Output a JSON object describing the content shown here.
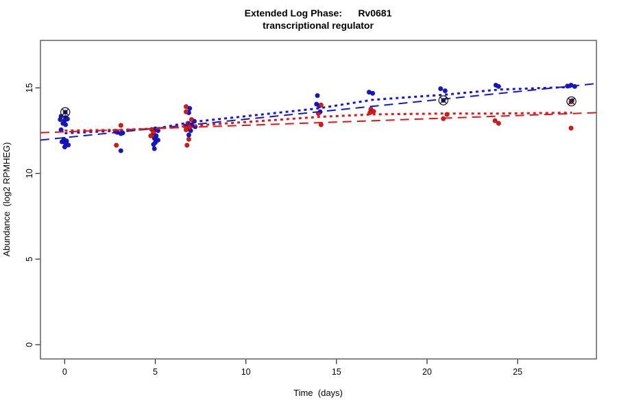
{
  "title": {
    "line1": "Extended Log Phase:      Rv0681",
    "line2": "transcriptional regulator"
  },
  "chart_data": {
    "type": "scatter",
    "title": "Extended Log Phase: Rv0681 transcriptional regulator",
    "xlabel": "Time  (days)",
    "ylabel": "Abundance  (log2 RPMHEG)",
    "xlim": [
      -1.34,
      29.35
    ],
    "ylim": [
      -0.83,
      17.77
    ],
    "x_ticks": [
      0,
      5,
      10,
      15,
      20,
      25
    ],
    "y_ticks": [
      0,
      5,
      10,
      15
    ],
    "grid": false,
    "legend": "none",
    "colors": {
      "blue": "#1515cd",
      "red": "#dd1616",
      "marker": "#111111"
    },
    "series": [
      {
        "name": "blue-points",
        "color": "#1515cd",
        "points": [
          [
            -0.2,
            13.34
          ],
          [
            0.05,
            13.27
          ],
          [
            -0.25,
            13.15
          ],
          [
            0.0,
            13.1
          ],
          [
            0.15,
            13.18
          ],
          [
            -0.1,
            12.93
          ],
          [
            0.05,
            12.85
          ],
          [
            -0.2,
            12.55
          ],
          [
            -0.05,
            12.0
          ],
          [
            0.1,
            11.9
          ],
          [
            -0.15,
            11.85
          ],
          [
            0.05,
            11.75
          ],
          [
            0.2,
            11.66
          ],
          [
            0.0,
            11.55
          ],
          [
            2.9,
            12.4
          ],
          [
            3.2,
            12.37
          ],
          [
            3.1,
            12.33
          ],
          [
            3.1,
            11.33
          ],
          [
            5.0,
            12.6
          ],
          [
            5.15,
            12.5
          ],
          [
            4.9,
            12.35
          ],
          [
            5.05,
            12.2
          ],
          [
            4.95,
            12.05
          ],
          [
            5.15,
            11.95
          ],
          [
            5.0,
            11.8
          ],
          [
            4.9,
            11.7
          ],
          [
            4.95,
            11.45
          ],
          [
            6.9,
            13.8
          ],
          [
            6.85,
            13.55
          ],
          [
            7.15,
            13.05
          ],
          [
            7.0,
            12.85
          ],
          [
            7.2,
            12.73
          ],
          [
            6.75,
            12.68
          ],
          [
            6.95,
            12.5
          ],
          [
            6.85,
            12.25
          ],
          [
            13.95,
            14.55
          ],
          [
            13.9,
            14.05
          ],
          [
            14.05,
            13.95
          ],
          [
            14.1,
            13.6
          ],
          [
            16.8,
            14.75
          ],
          [
            17.0,
            14.68
          ],
          [
            20.75,
            14.95
          ],
          [
            21.0,
            14.83
          ],
          [
            23.8,
            15.16
          ],
          [
            23.95,
            15.08
          ],
          [
            27.75,
            15.1
          ],
          [
            27.95,
            15.16
          ],
          [
            28.15,
            15.08
          ],
          [
            28.0,
            14.25
          ],
          [
            0.03,
            13.58
          ],
          [
            20.9,
            14.27
          ]
        ]
      },
      {
        "name": "red-points",
        "color": "#dd1616",
        "points": [
          [
            3.1,
            12.81
          ],
          [
            2.8,
            12.45
          ],
          [
            2.85,
            11.65
          ],
          [
            4.8,
            12.57
          ],
          [
            4.9,
            12.4
          ],
          [
            4.75,
            12.2
          ],
          [
            6.7,
            13.9
          ],
          [
            6.7,
            13.6
          ],
          [
            7.0,
            13.15
          ],
          [
            6.8,
            12.93
          ],
          [
            6.65,
            12.77
          ],
          [
            6.9,
            12.7
          ],
          [
            6.7,
            12.55
          ],
          [
            6.85,
            12.0
          ],
          [
            6.75,
            11.65
          ],
          [
            14.15,
            14.0
          ],
          [
            14.0,
            13.5
          ],
          [
            14.15,
            12.85
          ],
          [
            16.9,
            13.75
          ],
          [
            17.05,
            13.62
          ],
          [
            16.85,
            13.55
          ],
          [
            21.1,
            13.45
          ],
          [
            20.9,
            13.2
          ],
          [
            23.75,
            13.08
          ],
          [
            23.95,
            12.93
          ],
          [
            27.95,
            14.18
          ],
          [
            27.95,
            12.65
          ]
        ]
      }
    ],
    "flagged_points": [
      {
        "x": 0.03,
        "y": 13.58
      },
      {
        "x": 20.9,
        "y": 14.27
      },
      {
        "x": 27.97,
        "y": 14.21
      }
    ],
    "lines": [
      {
        "name": "blue-lm-dashed",
        "color": "#1515cd",
        "style": "dashed",
        "width": 2,
        "points": [
          [
            -1.34,
            11.95
          ],
          [
            29.35,
            15.25
          ]
        ]
      },
      {
        "name": "blue-lowess-dotted",
        "color": "#1515cd",
        "style": "dotted",
        "width": 3,
        "points": [
          [
            0,
            12.35
          ],
          [
            3,
            12.5
          ],
          [
            5,
            12.62
          ],
          [
            7,
            13.0
          ],
          [
            14,
            13.8
          ],
          [
            17,
            14.3
          ],
          [
            21,
            14.6
          ],
          [
            24,
            14.9
          ],
          [
            28,
            15.05
          ]
        ]
      },
      {
        "name": "red-lm-dashed",
        "color": "#dd1616",
        "style": "dashed",
        "width": 2,
        "points": [
          [
            -1.34,
            12.38
          ],
          [
            29.35,
            13.55
          ]
        ]
      },
      {
        "name": "red-lowess-dotted",
        "color": "#dd1616",
        "style": "dotted",
        "width": 3,
        "points": [
          [
            0,
            12.5
          ],
          [
            3,
            12.55
          ],
          [
            5,
            12.62
          ],
          [
            7,
            12.78
          ],
          [
            14,
            13.3
          ],
          [
            17,
            13.45
          ],
          [
            21,
            13.5
          ],
          [
            24,
            13.5
          ],
          [
            28,
            13.55
          ]
        ]
      }
    ]
  }
}
